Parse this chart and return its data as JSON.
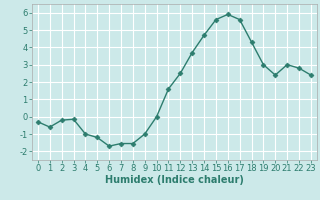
{
  "x": [
    0,
    1,
    2,
    3,
    4,
    5,
    6,
    7,
    8,
    9,
    10,
    11,
    12,
    13,
    14,
    15,
    16,
    17,
    18,
    19,
    20,
    21,
    22,
    23
  ],
  "y": [
    -0.3,
    -0.6,
    -0.2,
    -0.15,
    -1.0,
    -1.2,
    -1.7,
    -1.55,
    -1.55,
    -1.0,
    0.0,
    1.6,
    2.5,
    3.7,
    4.7,
    5.6,
    5.9,
    5.6,
    4.3,
    3.0,
    2.4,
    3.0,
    2.8,
    2.4
  ],
  "line_color": "#2d7d6e",
  "marker": "D",
  "marker_size": 2.5,
  "line_width": 1.0,
  "bg_color": "#cce9e9",
  "grid_color": "#ffffff",
  "xlabel": "Humidex (Indice chaleur)",
  "xlabel_fontsize": 7,
  "xlabel_weight": "bold",
  "xlim": [
    -0.5,
    23.5
  ],
  "ylim": [
    -2.5,
    6.5
  ],
  "yticks": [
    -2,
    -1,
    0,
    1,
    2,
    3,
    4,
    5,
    6
  ],
  "xticks": [
    0,
    1,
    2,
    3,
    4,
    5,
    6,
    7,
    8,
    9,
    10,
    11,
    12,
    13,
    14,
    15,
    16,
    17,
    18,
    19,
    20,
    21,
    22,
    23
  ],
  "tick_fontsize": 6,
  "tick_color": "#2d7d6e"
}
